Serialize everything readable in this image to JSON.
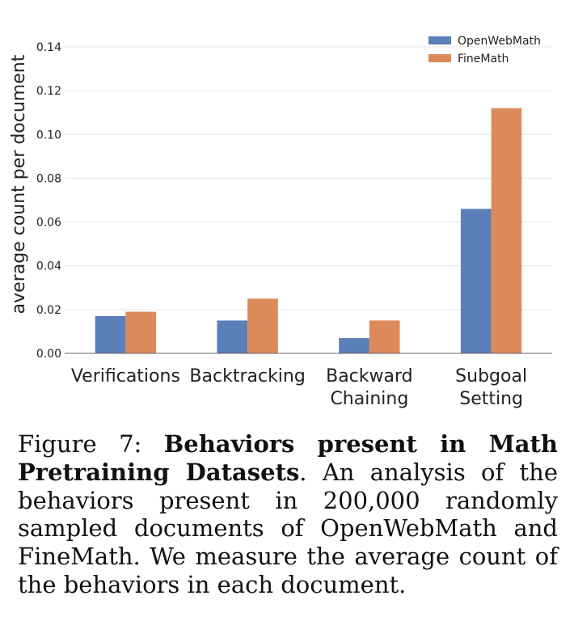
{
  "chart_data": {
    "type": "bar",
    "categories": [
      [
        "Verifications"
      ],
      [
        "Backtracking"
      ],
      [
        "Backward",
        "Chaining"
      ],
      [
        "Subgoal",
        "Setting"
      ]
    ],
    "series": [
      {
        "name": "OpenWebMath",
        "color": "#5b7fb9",
        "values": [
          0.017,
          0.015,
          0.007,
          0.066
        ]
      },
      {
        "name": "FineMath",
        "color": "#dc8a5a",
        "values": [
          0.019,
          0.025,
          0.015,
          0.112
        ]
      }
    ],
    "title": "",
    "xlabel": "",
    "ylabel": "average count per document",
    "ylim": [
      0,
      0.14
    ],
    "yticks": [
      "0.00",
      "0.02",
      "0.04",
      "0.06",
      "0.08",
      "0.10",
      "0.12",
      "0.14"
    ],
    "grid": true,
    "legend": "top-right"
  },
  "caption": {
    "label": "Figure 7:",
    "bold_title": "Behaviors present in Math Pretraining Datasets",
    "body": ". An analysis of the behaviors present in 200,000 randomly sampled documents of OpenWebMath and FineMath. We measure the average count of the behaviors in each document."
  }
}
